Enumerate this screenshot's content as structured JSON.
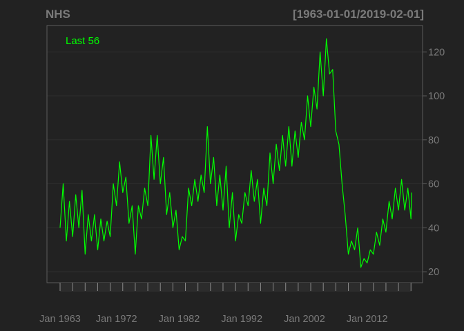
{
  "chart_data": {
    "type": "line",
    "title": "NHS",
    "date_range": "[1963-01-01/2019-02-01]",
    "legend_label": "Last 56",
    "ylim": [
      15,
      132
    ],
    "y_ticks": [
      20,
      40,
      60,
      80,
      100,
      120
    ],
    "x_tick_labels": [
      {
        "label": "Jan 1963",
        "year": 1963
      },
      {
        "label": "Jan 1972",
        "year": 1972
      },
      {
        "label": "Jan 1982",
        "year": 1982
      },
      {
        "label": "Jan 1992",
        "year": 1992
      },
      {
        "label": "Jan 2002",
        "year": 2002
      },
      {
        "label": "Jan 2012",
        "year": 2012
      }
    ],
    "x_start_year": 1963.0,
    "x_end_year": 2019.0833,
    "grid": true,
    "legend_position": "top-left",
    "series": [
      {
        "name": "NHS",
        "color": "#00ff00",
        "points": [
          [
            1963.0,
            40
          ],
          [
            1963.5,
            60
          ],
          [
            1964.0,
            34
          ],
          [
            1964.5,
            52
          ],
          [
            1965.0,
            36
          ],
          [
            1965.5,
            55
          ],
          [
            1966.0,
            40
          ],
          [
            1966.5,
            57
          ],
          [
            1967.0,
            28
          ],
          [
            1967.5,
            46
          ],
          [
            1968.0,
            34
          ],
          [
            1968.5,
            46
          ],
          [
            1969.0,
            30
          ],
          [
            1969.5,
            44
          ],
          [
            1970.0,
            34
          ],
          [
            1970.5,
            43
          ],
          [
            1971.0,
            36
          ],
          [
            1971.5,
            60
          ],
          [
            1972.0,
            50
          ],
          [
            1972.5,
            70
          ],
          [
            1973.0,
            56
          ],
          [
            1973.5,
            63
          ],
          [
            1974.0,
            42
          ],
          [
            1974.5,
            50
          ],
          [
            1975.0,
            28
          ],
          [
            1975.5,
            50
          ],
          [
            1976.0,
            44
          ],
          [
            1976.5,
            58
          ],
          [
            1977.0,
            50
          ],
          [
            1977.5,
            82
          ],
          [
            1978.0,
            62
          ],
          [
            1978.5,
            82
          ],
          [
            1979.0,
            60
          ],
          [
            1979.5,
            72
          ],
          [
            1980.0,
            46
          ],
          [
            1980.5,
            56
          ],
          [
            1981.0,
            40
          ],
          [
            1981.5,
            48
          ],
          [
            1982.0,
            30
          ],
          [
            1982.5,
            36
          ],
          [
            1983.0,
            34
          ],
          [
            1983.5,
            58
          ],
          [
            1984.0,
            50
          ],
          [
            1984.5,
            62
          ],
          [
            1985.0,
            52
          ],
          [
            1985.5,
            64
          ],
          [
            1986.0,
            56
          ],
          [
            1986.5,
            86
          ],
          [
            1987.0,
            60
          ],
          [
            1987.5,
            72
          ],
          [
            1988.0,
            50
          ],
          [
            1988.5,
            64
          ],
          [
            1989.0,
            48
          ],
          [
            1989.5,
            68
          ],
          [
            1990.0,
            40
          ],
          [
            1990.5,
            56
          ],
          [
            1991.0,
            34
          ],
          [
            1991.5,
            46
          ],
          [
            1992.0,
            42
          ],
          [
            1992.5,
            56
          ],
          [
            1993.0,
            50
          ],
          [
            1993.5,
            66
          ],
          [
            1994.0,
            52
          ],
          [
            1994.5,
            62
          ],
          [
            1995.0,
            42
          ],
          [
            1995.5,
            58
          ],
          [
            1996.0,
            50
          ],
          [
            1996.5,
            74
          ],
          [
            1997.0,
            60
          ],
          [
            1997.5,
            78
          ],
          [
            1998.0,
            66
          ],
          [
            1998.5,
            82
          ],
          [
            1999.0,
            68
          ],
          [
            1999.5,
            86
          ],
          [
            2000.0,
            68
          ],
          [
            2000.5,
            84
          ],
          [
            2001.0,
            72
          ],
          [
            2001.5,
            88
          ],
          [
            2002.0,
            80
          ],
          [
            2002.5,
            100
          ],
          [
            2003.0,
            86
          ],
          [
            2003.5,
            104
          ],
          [
            2004.0,
            94
          ],
          [
            2004.5,
            120
          ],
          [
            2005.0,
            100
          ],
          [
            2005.5,
            126
          ],
          [
            2006.0,
            110
          ],
          [
            2006.5,
            112
          ],
          [
            2007.0,
            84
          ],
          [
            2007.5,
            78
          ],
          [
            2008.0,
            60
          ],
          [
            2008.5,
            46
          ],
          [
            2009.0,
            28
          ],
          [
            2009.5,
            34
          ],
          [
            2010.0,
            30
          ],
          [
            2010.5,
            40
          ],
          [
            2011.0,
            22
          ],
          [
            2011.5,
            26
          ],
          [
            2012.0,
            24
          ],
          [
            2012.5,
            30
          ],
          [
            2013.0,
            28
          ],
          [
            2013.5,
            38
          ],
          [
            2014.0,
            32
          ],
          [
            2014.5,
            44
          ],
          [
            2015.0,
            38
          ],
          [
            2015.5,
            52
          ],
          [
            2016.0,
            44
          ],
          [
            2016.5,
            58
          ],
          [
            2017.0,
            48
          ],
          [
            2017.5,
            62
          ],
          [
            2018.0,
            48
          ],
          [
            2018.5,
            58
          ],
          [
            2019.0,
            44
          ],
          [
            2019.0833,
            56
          ]
        ]
      }
    ]
  }
}
